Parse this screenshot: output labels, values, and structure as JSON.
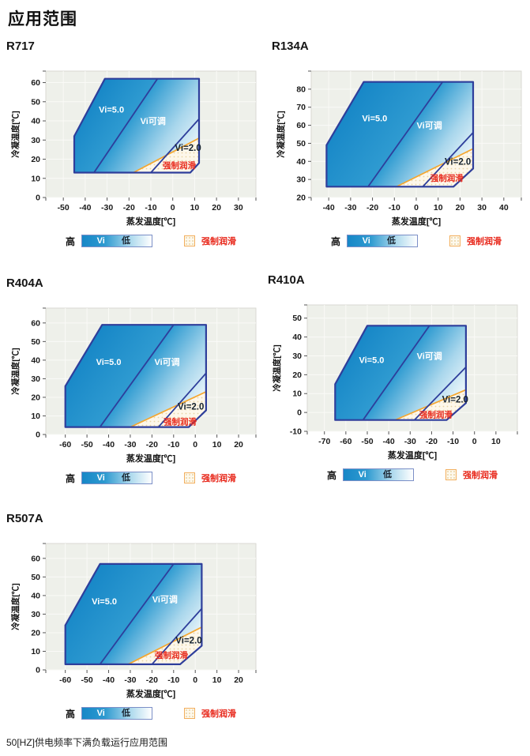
{
  "page": {
    "title": "应用范围",
    "footer": "50[HZ]供电频率下满负载运行应用范围"
  },
  "legend": {
    "high": "高",
    "vi": "Vi",
    "low": "低",
    "forced_lube": "强制润滑"
  },
  "colors": {
    "plot_bg": "#eef0ea",
    "grid": "#fafaf7",
    "plot_border": "#d9d9d3",
    "envelope_border": "#2e3e9b",
    "gradient_dark": "#1787c7",
    "gradient_mid": "#2f9bd1",
    "gradient_light": "#a8d6ec",
    "gradient_end": "#ffffff",
    "orange_line": "#f5a62e",
    "red_text": "#e8291c",
    "lube_fill": "#fdf7ea",
    "lube_dot": "#e9d4a4",
    "tick_text": "#1a1a1a",
    "tick_mark": "#555555",
    "axis_text": "#111111",
    "label_dark": "#15222e",
    "label_white": "#ffffff"
  },
  "chart_data": [
    {
      "type": "area",
      "title": "R717",
      "xlabel": "蒸发温度[℃]",
      "ylabel": "冷凝温度[℃]",
      "xlim": [
        -58,
        38
      ],
      "ylim": [
        0,
        66
      ],
      "xticks": [
        -50,
        -40,
        -30,
        -20,
        -10,
        0,
        10,
        20,
        30
      ],
      "yticks": [
        0,
        10,
        20,
        30,
        40,
        50,
        60
      ],
      "envelope": [
        [
          -45,
          13
        ],
        [
          -45,
          32
        ],
        [
          -31,
          62
        ],
        [
          12,
          62
        ],
        [
          12,
          18
        ],
        [
          8,
          13
        ]
      ],
      "vi5_boundary": [
        [
          -36,
          13
        ],
        [
          -7,
          62
        ]
      ],
      "vi2_boundary": [
        [
          -10,
          13
        ],
        [
          12,
          41
        ]
      ],
      "forced_lube_line": [
        [
          -18,
          13
        ],
        [
          12,
          31
        ]
      ],
      "forced_lube_region": [
        [
          -18,
          13
        ],
        [
          8,
          13
        ],
        [
          12,
          18
        ],
        [
          12,
          31
        ]
      ],
      "labels": [
        {
          "text": "Vi=5.0",
          "x": -28,
          "y": 46,
          "style": "white"
        },
        {
          "text": "Vi可调",
          "x": -9,
          "y": 40,
          "style": "white"
        },
        {
          "text": "Vi=2.0",
          "x": 7,
          "y": 26,
          "style": "dark"
        },
        {
          "text": "强制润滑",
          "x": 3,
          "y": 17,
          "style": "red"
        }
      ]
    },
    {
      "type": "area",
      "title": "R134A",
      "xlabel": "蒸发温度[℃]",
      "ylabel": "冷凝温度[℃]",
      "xlim": [
        -48,
        48
      ],
      "ylim": [
        20,
        90
      ],
      "xticks": [
        -40,
        -30,
        -20,
        -10,
        0,
        10,
        20,
        30,
        40
      ],
      "yticks": [
        20,
        30,
        40,
        50,
        60,
        70,
        80
      ],
      "envelope": [
        [
          -41,
          26
        ],
        [
          -41,
          49
        ],
        [
          -24,
          84
        ],
        [
          26,
          84
        ],
        [
          26,
          36
        ],
        [
          17,
          26
        ]
      ],
      "vi5_boundary": [
        [
          -22,
          26
        ],
        [
          12,
          84
        ]
      ],
      "vi2_boundary": [
        [
          3,
          26
        ],
        [
          26,
          56
        ]
      ],
      "forced_lube_line": [
        [
          -9,
          26
        ],
        [
          26,
          47
        ]
      ],
      "forced_lube_region": [
        [
          -9,
          26
        ],
        [
          17,
          26
        ],
        [
          26,
          36
        ],
        [
          26,
          47
        ]
      ],
      "labels": [
        {
          "text": "Vi=5.0",
          "x": -19,
          "y": 64,
          "style": "white"
        },
        {
          "text": "Vi可调",
          "x": 6,
          "y": 60,
          "style": "white"
        },
        {
          "text": "Vi=2.0",
          "x": 19,
          "y": 40,
          "style": "dark"
        },
        {
          "text": "强制润滑",
          "x": 14,
          "y": 31,
          "style": "red"
        }
      ]
    },
    {
      "type": "area",
      "title": "R404A",
      "xlabel": "蒸发温度[℃]",
      "ylabel": "冷凝温度[℃]",
      "xlim": [
        -69,
        28
      ],
      "ylim": [
        0,
        68
      ],
      "xticks": [
        -60,
        -50,
        -40,
        -30,
        -20,
        -10,
        0,
        10,
        20
      ],
      "yticks": [
        0,
        10,
        20,
        30,
        40,
        50,
        60
      ],
      "envelope": [
        [
          -60,
          4
        ],
        [
          -60,
          26
        ],
        [
          -43,
          59
        ],
        [
          5,
          59
        ],
        [
          5,
          13
        ],
        [
          -3,
          4
        ]
      ],
      "vi5_boundary": [
        [
          -44,
          4
        ],
        [
          -10,
          59
        ]
      ],
      "vi2_boundary": [
        [
          -17,
          4
        ],
        [
          5,
          33
        ]
      ],
      "forced_lube_line": [
        [
          -30,
          4
        ],
        [
          5,
          23
        ]
      ],
      "forced_lube_region": [
        [
          -30,
          4
        ],
        [
          -3,
          4
        ],
        [
          5,
          13
        ],
        [
          5,
          23
        ]
      ],
      "labels": [
        {
          "text": "Vi=5.0",
          "x": -40,
          "y": 39,
          "style": "white"
        },
        {
          "text": "Vi可调",
          "x": -13,
          "y": 39,
          "style": "white"
        },
        {
          "text": "Vi=2.0",
          "x": -2,
          "y": 15,
          "style": "dark"
        },
        {
          "text": "强制润滑",
          "x": -7,
          "y": 7,
          "style": "red"
        }
      ]
    },
    {
      "type": "area",
      "title": "R410A",
      "xlabel": "蒸发温度[℃]",
      "ylabel": "冷凝温度[℃]",
      "xlim": [
        -78,
        20
      ],
      "ylim": [
        -10,
        57
      ],
      "xticks": [
        -70,
        -60,
        -50,
        -40,
        -30,
        -20,
        -10,
        0,
        10
      ],
      "yticks": [
        -10,
        0,
        10,
        20,
        30,
        40,
        50
      ],
      "envelope": [
        [
          -65,
          -4
        ],
        [
          -65,
          15
        ],
        [
          -50,
          46
        ],
        [
          -4,
          46
        ],
        [
          -4,
          5
        ],
        [
          -13,
          -4
        ]
      ],
      "vi5_boundary": [
        [
          -52,
          -4
        ],
        [
          -21,
          46
        ]
      ],
      "vi2_boundary": [
        [
          -28,
          -4
        ],
        [
          -4,
          24
        ]
      ],
      "forced_lube_line": [
        [
          -37,
          -4
        ],
        [
          -4,
          12
        ]
      ],
      "forced_lube_region": [
        [
          -37,
          -4
        ],
        [
          -13,
          -4
        ],
        [
          -4,
          5
        ],
        [
          -4,
          12
        ]
      ],
      "labels": [
        {
          "text": "Vi=5.0",
          "x": -48,
          "y": 28,
          "style": "white"
        },
        {
          "text": "Vi可调",
          "x": -21,
          "y": 30,
          "style": "white"
        },
        {
          "text": "Vi=2.0",
          "x": -9,
          "y": 7,
          "style": "dark"
        },
        {
          "text": "强制润滑",
          "x": -18,
          "y": -1,
          "style": "red"
        }
      ]
    },
    {
      "type": "area",
      "title": "R507A",
      "xlabel": "蒸发温度[℃]",
      "ylabel": "冷凝温度[℃]",
      "xlim": [
        -69,
        28
      ],
      "ylim": [
        0,
        68
      ],
      "xticks": [
        -60,
        -50,
        -40,
        -30,
        -20,
        -10,
        0,
        10,
        20
      ],
      "yticks": [
        0,
        10,
        20,
        30,
        40,
        50,
        60
      ],
      "envelope": [
        [
          -60,
          3
        ],
        [
          -60,
          24
        ],
        [
          -44,
          57
        ],
        [
          3,
          57
        ],
        [
          3,
          13
        ],
        [
          -7,
          3
        ]
      ],
      "vi5_boundary": [
        [
          -44,
          3
        ],
        [
          -10,
          57
        ]
      ],
      "vi2_boundary": [
        [
          -20,
          3
        ],
        [
          3,
          33
        ]
      ],
      "forced_lube_line": [
        [
          -31,
          3
        ],
        [
          3,
          23
        ]
      ],
      "forced_lube_region": [
        [
          -31,
          3
        ],
        [
          -7,
          3
        ],
        [
          3,
          13
        ],
        [
          3,
          23
        ]
      ],
      "labels": [
        {
          "text": "Vi=5.0",
          "x": -42,
          "y": 37,
          "style": "white"
        },
        {
          "text": "Vi可调",
          "x": -14,
          "y": 38,
          "style": "white"
        },
        {
          "text": "Vi=2.0",
          "x": -3,
          "y": 16,
          "style": "dark"
        },
        {
          "text": "强制润滑",
          "x": -11,
          "y": 8,
          "style": "red"
        }
      ]
    }
  ]
}
